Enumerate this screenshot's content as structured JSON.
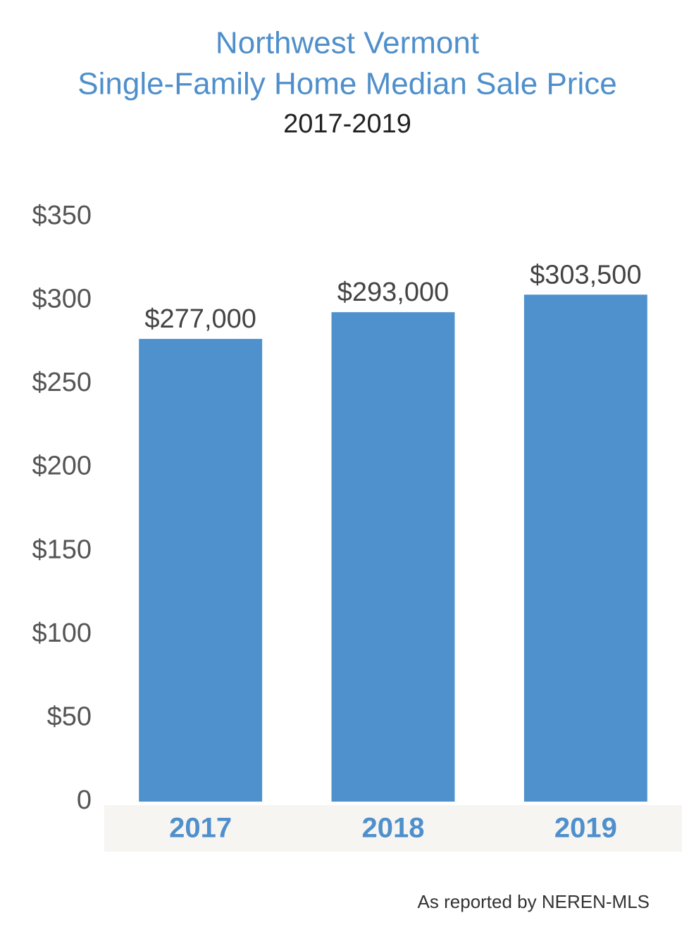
{
  "chart_data": {
    "type": "bar",
    "title": [
      "Northwest Vermont",
      "Single-Family Home Median Sale Price"
    ],
    "subtitle": "2017-2019",
    "categories": [
      "2017",
      "2018",
      "2019"
    ],
    "values": [
      277,
      293,
      303.5
    ],
    "value_labels": [
      "$277,000",
      "$293,000",
      "$303,500"
    ],
    "color": "#4f91cc",
    "ylim": [
      0,
      350
    ],
    "yticks": [
      0,
      {
        "value": 50,
        "label": "$50"
      },
      {
        "value": 100,
        "label": "$100"
      },
      {
        "value": 150,
        "label": "$150"
      },
      {
        "value": 200,
        "label": "$200"
      },
      {
        "value": 250,
        "label": "$250"
      },
      {
        "value": 300,
        "label": "$300"
      },
      {
        "value": 350,
        "label": "$350"
      }
    ],
    "grid": false,
    "source": "As reported by NEREN-MLS"
  }
}
